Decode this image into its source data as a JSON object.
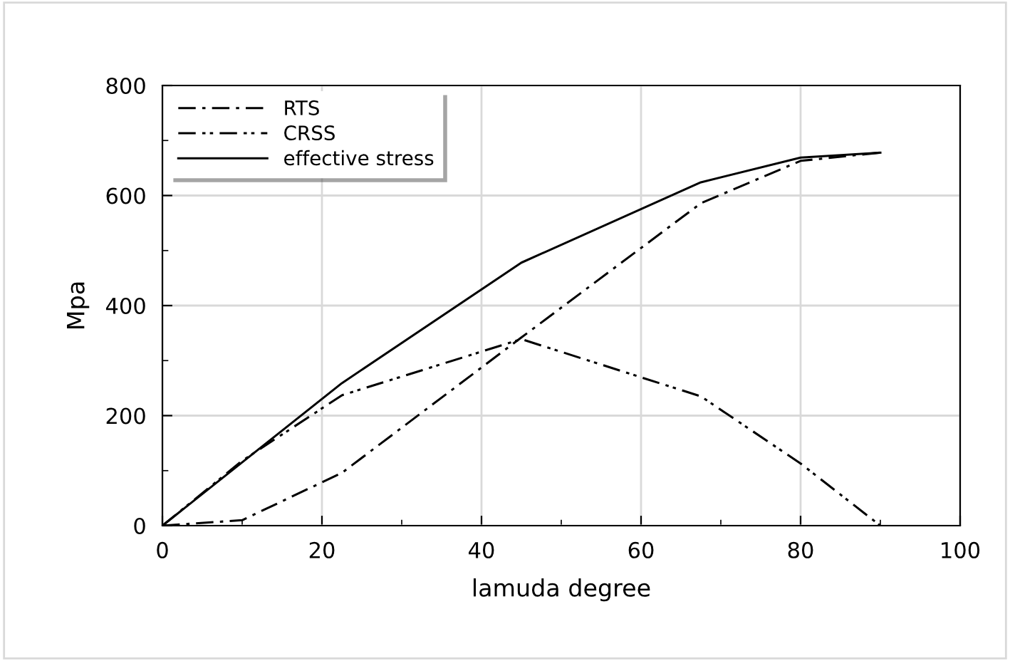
{
  "chart_data": {
    "type": "line",
    "xlabel": "lamuda degree",
    "ylabel": "Mpa",
    "series": [
      {
        "name": "RTS",
        "color": "#000000",
        "line_style": "dashdot",
        "x": [
          0,
          10,
          22.5,
          45,
          67.5,
          80,
          90
        ],
        "values": [
          0,
          10,
          96,
          342,
          586,
          663,
          678
        ]
      },
      {
        "name": "CRSS",
        "color": "#000000",
        "line_style": "dashdotdot",
        "x": [
          0,
          10,
          22.5,
          45,
          67.5,
          80,
          90
        ],
        "values": [
          0,
          118,
          237,
          339,
          235,
          113,
          0
        ]
      },
      {
        "name": "effective stress",
        "color": "#000000",
        "line_style": "solid",
        "x": [
          0,
          22.5,
          45,
          67.5,
          80,
          90
        ],
        "values": [
          0,
          259,
          478,
          624,
          669,
          678
        ]
      }
    ],
    "xlim": [
      0,
      100
    ],
    "xticks": [
      0,
      20,
      40,
      60,
      80,
      100
    ],
    "ylim": [
      0,
      800
    ],
    "yticks": [
      0,
      200,
      400,
      600,
      800
    ],
    "grid": true,
    "legend": "top left",
    "marker": "none"
  }
}
